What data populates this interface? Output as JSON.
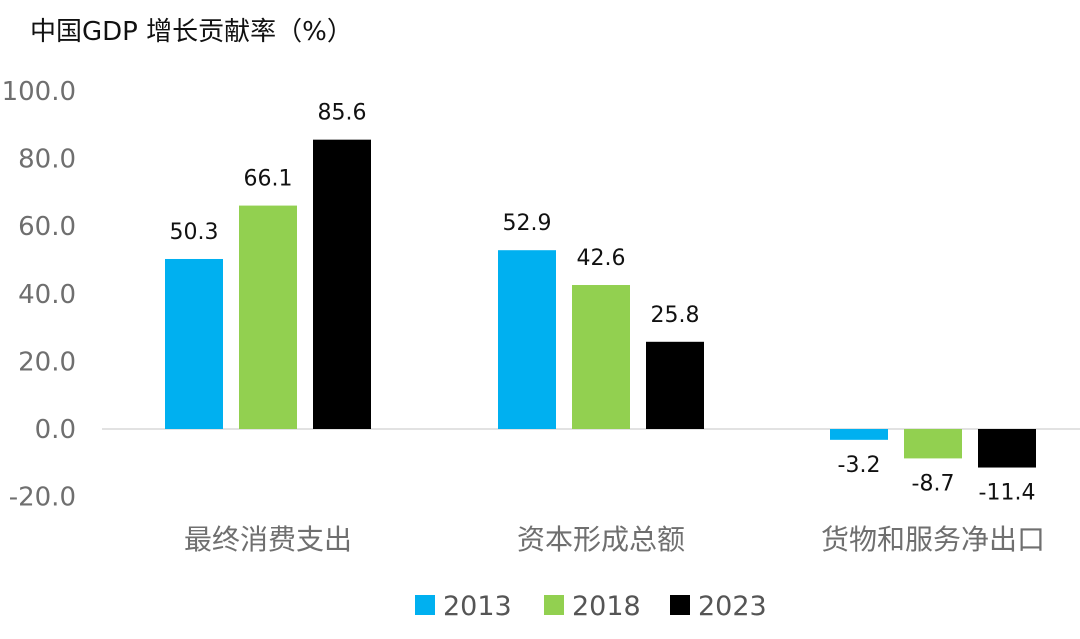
{
  "chart_data": {
    "type": "bar",
    "title": "中国GDP 增长贡献率（%）",
    "xlabel": "",
    "ylabel": "",
    "ylim": [
      -20,
      100
    ],
    "yticks": [
      100,
      80,
      60,
      40,
      20,
      0,
      -20
    ],
    "ytick_labels": [
      "100.0",
      "80.0",
      "60.0",
      "40.0",
      "20.0",
      "0.0",
      "-20.0"
    ],
    "grid": false,
    "legend_position": "bottom-center",
    "categories": [
      "最终消费支出",
      "资本形成总额",
      "货物和服务净出口"
    ],
    "series": [
      {
        "name": "2013",
        "color": "#00b0f0",
        "values": [
          50.3,
          52.9,
          -3.2
        ],
        "labels": [
          "50.3",
          "52.9",
          "-3.2"
        ]
      },
      {
        "name": "2018",
        "color": "#92d050",
        "values": [
          66.1,
          42.6,
          -8.7
        ],
        "labels": [
          "66.1",
          "42.6",
          "-8.7"
        ]
      },
      {
        "name": "2023",
        "color": "#000000",
        "values": [
          85.6,
          25.8,
          -11.4
        ],
        "labels": [
          "85.6",
          "25.8",
          "-11.4"
        ]
      }
    ]
  }
}
